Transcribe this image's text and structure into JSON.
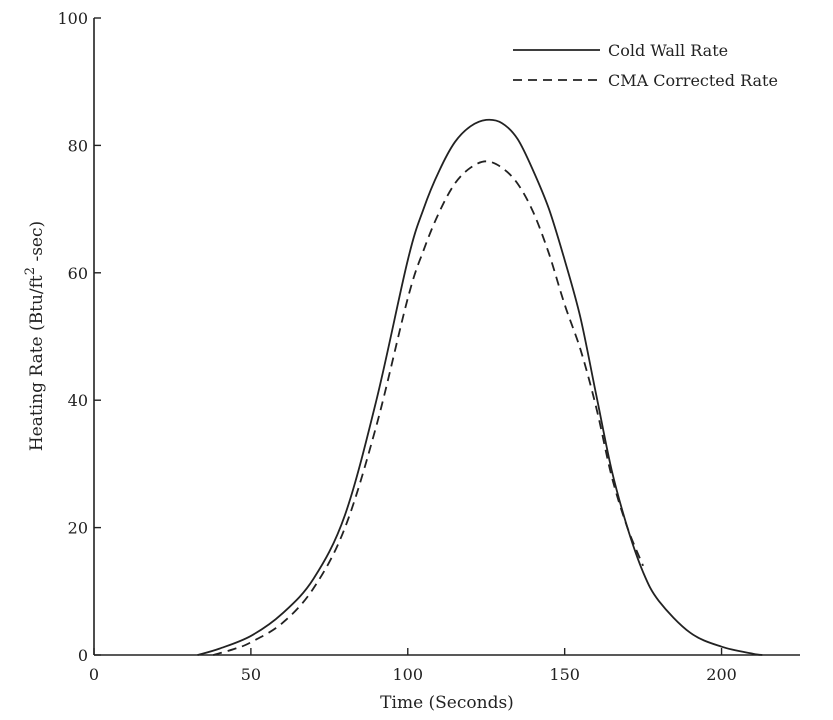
{
  "chart_data": {
    "type": "line",
    "title": "",
    "xlabel": "Time (Seconds)",
    "ylabel_main": "Heating Rate (Btu/ft",
    "ylabel_sup": "2",
    "ylabel_tail": " -sec)",
    "xlim": [
      0,
      225
    ],
    "ylim": [
      0,
      100
    ],
    "xticks": [
      "0",
      "50",
      "100",
      "150",
      "200"
    ],
    "yticks": [
      "0",
      "20",
      "40",
      "60",
      "80",
      "100"
    ],
    "grid": false,
    "legend_position": "top-right",
    "series": [
      {
        "name": "Cold Wall Rate",
        "style": "solid",
        "color": "#222222",
        "x": [
          33,
          40,
          50,
          60,
          70,
          80,
          90,
          100,
          105,
          110,
          115,
          120,
          125,
          130,
          135,
          140,
          145,
          150,
          155,
          160,
          165,
          170,
          175,
          180,
          190,
          200,
          210,
          213
        ],
        "y": [
          0,
          1,
          3,
          6.5,
          12,
          22,
          40,
          62,
          70,
          76,
          80.5,
          83,
          84,
          83.5,
          81,
          76,
          70,
          62,
          53,
          41,
          29,
          20,
          13,
          8.5,
          3.5,
          1.3,
          0.2,
          0
        ]
      },
      {
        "name": "CMA Corrected Rate",
        "style": "dashed",
        "color": "#222222",
        "x": [
          38,
          45,
          50,
          60,
          70,
          80,
          90,
          100,
          105,
          110,
          115,
          120,
          125,
          130,
          135,
          140,
          145,
          150,
          155,
          160,
          165,
          170,
          175
        ],
        "y": [
          0,
          1,
          2,
          5,
          10.5,
          20,
          36,
          56,
          63.5,
          69.5,
          74,
          76.5,
          77.5,
          76.5,
          74,
          69.5,
          63,
          55,
          48,
          39,
          28,
          20,
          14
        ]
      }
    ]
  }
}
